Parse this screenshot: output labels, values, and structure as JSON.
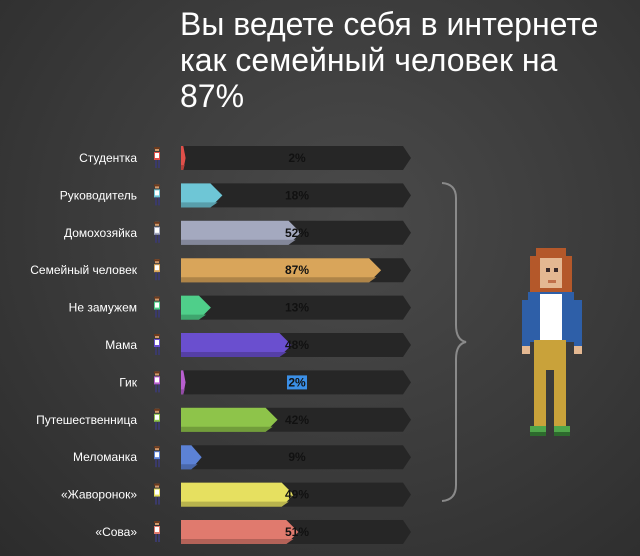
{
  "title": "Вы ведете себя в интернете как семейный человек на 87%",
  "chart_data": {
    "type": "bar",
    "orientation": "horizontal",
    "title": "Вы ведете себя в интернете как семейный человек на 87%",
    "categories": [
      "Студентка",
      "Руководитель",
      "Домохозяйка",
      "Семейный человек",
      "Не замужем",
      "Мама",
      "Гик",
      "Путешественница",
      "Меломанка",
      "«Жаворонок»",
      "«Сова»"
    ],
    "values": [
      2,
      18,
      52,
      87,
      13,
      48,
      2,
      42,
      9,
      49,
      51
    ],
    "value_labels": [
      "2%",
      "18%",
      "52%",
      "87%",
      "13%",
      "48%",
      "2%",
      "42%",
      "9%",
      "49%",
      "51%"
    ],
    "colors": [
      "#e0504a",
      "#6ec6d6",
      "#a4a9bf",
      "#d9a55a",
      "#4fcf8a",
      "#6a4fcf",
      "#b85fcf",
      "#8ec44a",
      "#5c82d6",
      "#e6e060",
      "#e07a6e"
    ],
    "track_color": "#262626",
    "highlighted_label_index": 6,
    "xlim": [
      0,
      100
    ],
    "grid": false,
    "legend": "none"
  }
}
